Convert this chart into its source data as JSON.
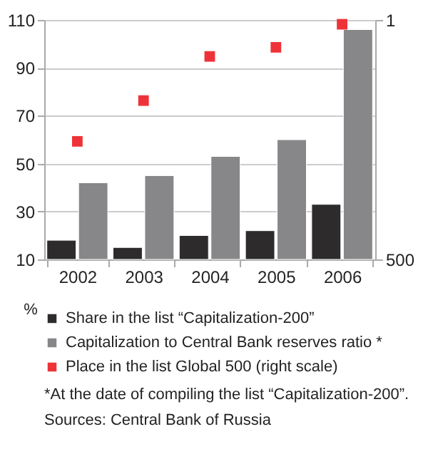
{
  "chart_data": {
    "type": "bar",
    "categories": [
      "2002",
      "2003",
      "2004",
      "2005",
      "2006"
    ],
    "ylabel": "%",
    "series": [
      {
        "name": "Share in the list “Capitalization-200”",
        "color": "#2e2b2c",
        "values": [
          18,
          15,
          20,
          22,
          33
        ]
      },
      {
        "name": "Capitalization to Central Bank reserves ratio *",
        "color": "#87878a",
        "values": [
          42,
          45,
          53,
          60,
          106
        ]
      },
      {
        "name": "Place in the list Global 500 (right scale)",
        "type": "scatter",
        "axis": "y2",
        "marker": "square",
        "color": "#ee3338",
        "values": [
          254,
          169,
          77,
          58,
          10
        ]
      }
    ],
    "ylim": [
      10,
      110
    ],
    "yticks": [
      10,
      30,
      50,
      70,
      90,
      110
    ],
    "y2lim": [
      500,
      1
    ],
    "y2ticks": [
      1,
      500
    ],
    "grid": "y",
    "legend": "bottom",
    "annotations": [
      "*At the date of compiling the list “Capitalization-200”.",
      "Sources: Central Bank of Russia"
    ]
  }
}
